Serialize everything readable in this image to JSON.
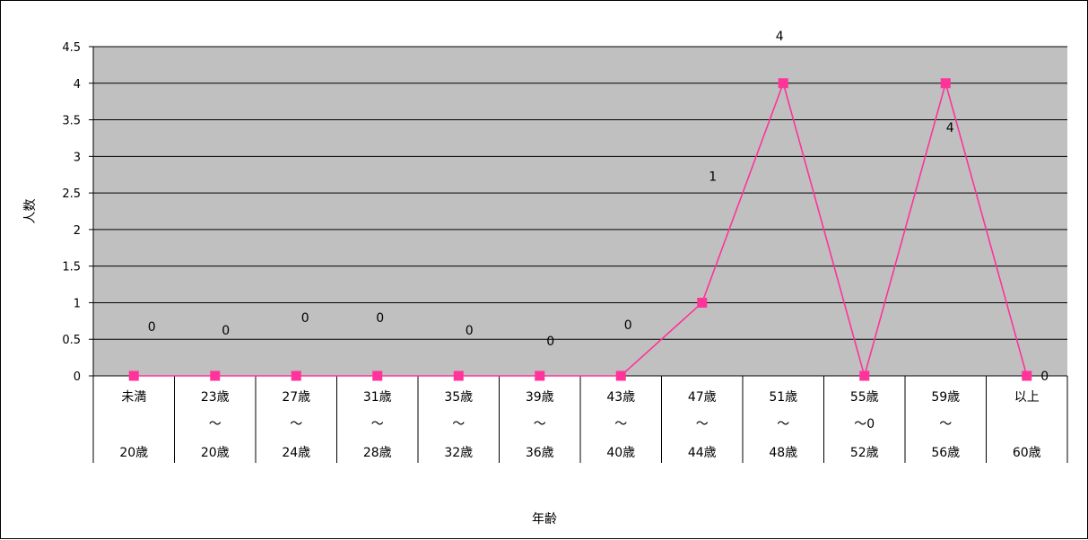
{
  "chart_data": {
    "type": "line",
    "title": "",
    "xlabel": "年齢",
    "ylabel": "人数",
    "ylim": [
      0,
      4.5
    ],
    "yticks": [
      "0",
      "0.5",
      "1",
      "1.5",
      "2",
      "2.5",
      "3",
      "3.5",
      "4",
      "4.5"
    ],
    "grid": true,
    "categories": [
      [
        "未満",
        "",
        "20歳"
      ],
      [
        "23歳",
        "～",
        "20歳"
      ],
      [
        "27歳",
        "～",
        "24歳"
      ],
      [
        "31歳",
        "～",
        "28歳"
      ],
      [
        "35歳",
        "～",
        "32歳"
      ],
      [
        "39歳",
        "～",
        "36歳"
      ],
      [
        "43歳",
        "～",
        "40歳"
      ],
      [
        "47歳",
        "～",
        "44歳"
      ],
      [
        "51歳",
        "～",
        "48歳"
      ],
      [
        "55歳",
        "～0",
        "52歳"
      ],
      [
        "59歳",
        "～",
        "56歳"
      ],
      [
        "以上",
        "",
        "60歳"
      ]
    ],
    "values": [
      0,
      0,
      0,
      0,
      0,
      0,
      0,
      1,
      4,
      0,
      4,
      0
    ],
    "data_labels": [
      "0",
      "0",
      "0",
      "0",
      "0",
      "0",
      "0",
      "1",
      "4",
      "",
      "4",
      "0"
    ],
    "colors": {
      "plot_bg": "#c0c0c0",
      "line": "#ff3399",
      "marker": "#ff3399"
    }
  }
}
